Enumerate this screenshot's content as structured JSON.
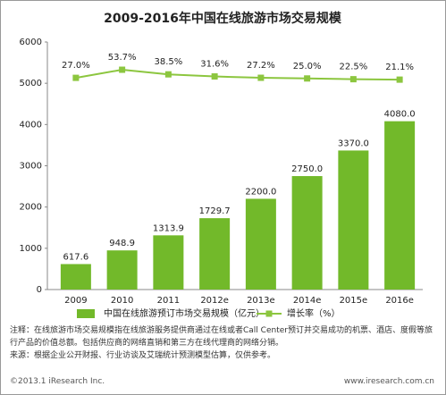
{
  "chart_data": {
    "type": "bar",
    "title": "2009-2016年中国在线旅游市场交易规模",
    "categories": [
      "2009",
      "2010",
      "2011",
      "2012e",
      "2013e",
      "2014e",
      "2015e",
      "2016e"
    ],
    "series": [
      {
        "name": "中国在线旅游预订市场交易规模（亿元）",
        "type": "bar",
        "color": "#72b92a",
        "values": [
          617.6,
          948.9,
          1313.9,
          1729.7,
          2200.0,
          2750.0,
          3370.0,
          4080.0
        ],
        "value_labels": [
          "617.6",
          "948.9",
          "1313.9",
          "1729.7",
          "2200.0",
          "2750.0",
          "3370.0",
          "4080.0"
        ]
      },
      {
        "name": "增长率（%）",
        "type": "line",
        "axis": "y2",
        "color": "#8cc63f",
        "values": [
          27.0,
          53.7,
          38.5,
          31.6,
          27.2,
          25.0,
          22.5,
          21.1
        ],
        "value_labels": [
          "27.0%",
          "53.7%",
          "38.5%",
          "31.6%",
          "27.2%",
          "25.0%",
          "22.5%",
          "21.1%"
        ]
      }
    ],
    "ylim": [
      0,
      6000
    ],
    "yticks": [
      0,
      1000,
      2000,
      3000,
      4000,
      5000,
      6000
    ],
    "y2lim": [
      -670,
      145
    ],
    "grid": false,
    "notes": [
      "注释：在线旅游市场交易规模指在线旅游服务提供商通过在线或者Call Center预订并交易成功的机票、酒店、度假等旅行产品的价值总额。包括供应商的网络直销和第三方在线代理商的网络分销。",
      "来源：根据企业公开财报、行业访谈及艾瑞统计预测模型估算，仅供参考。"
    ],
    "footer_left": "©2013.1 iResearch Inc.",
    "footer_right": "www.iresearch.com.cn"
  }
}
